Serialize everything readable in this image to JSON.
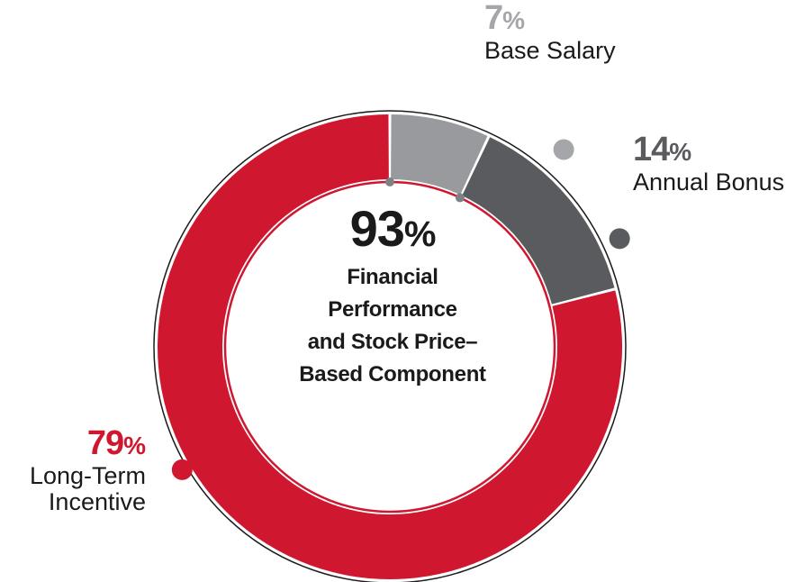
{
  "chart_data": {
    "type": "pie",
    "subtype": "donut",
    "slices": [
      {
        "key": "base",
        "label": "Base Salary",
        "value": 7,
        "pct_text": "7",
        "color": "#999a9d",
        "dot_color": "#a5a6a9"
      },
      {
        "key": "bonus",
        "label": "Annual Bonus",
        "value": 14,
        "pct_text": "14",
        "color": "#5a5b5e",
        "dot_color": "#5a5b5e"
      },
      {
        "key": "lti",
        "label": "Long-Term\nIncentive",
        "value": 79,
        "pct_text": "79",
        "color": "#cf1830",
        "dot_color": "#cf1830"
      }
    ],
    "center": {
      "value": "93",
      "caption_lines": [
        "Financial",
        "Performance",
        "and Stock Price–",
        "Based Component"
      ]
    },
    "percent_sign": "%",
    "colors": {
      "outer_ring": "#1a1a1a",
      "inner_ring": "#cf1830",
      "inner_marker": "#808184"
    }
  }
}
